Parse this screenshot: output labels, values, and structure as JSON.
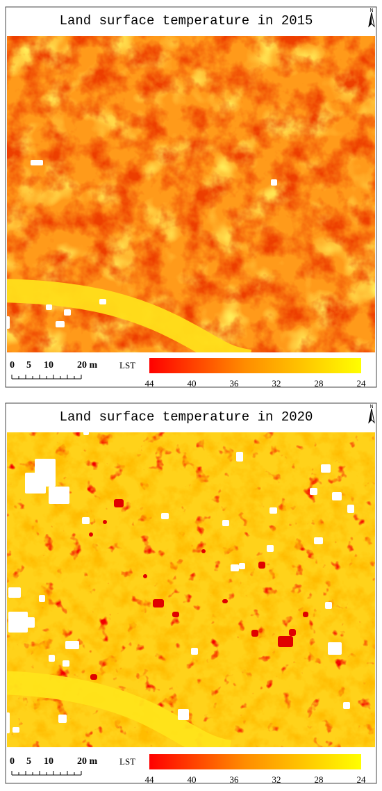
{
  "panels": [
    {
      "title": "Land surface temperature in 2015",
      "north": "N",
      "scale_labels": [
        "0",
        "5",
        "10",
        "20 m"
      ],
      "legend": {
        "label": "LST",
        "ticks": [
          44,
          40,
          36,
          32,
          28,
          24
        ]
      }
    },
    {
      "title": "Land surface temperature in 2020",
      "north": "N",
      "scale_labels": [
        "0",
        "5",
        "10",
        "20 m"
      ],
      "legend": {
        "label": "LST",
        "ticks": [
          44,
          40,
          36,
          32,
          28,
          24
        ]
      }
    }
  ]
}
